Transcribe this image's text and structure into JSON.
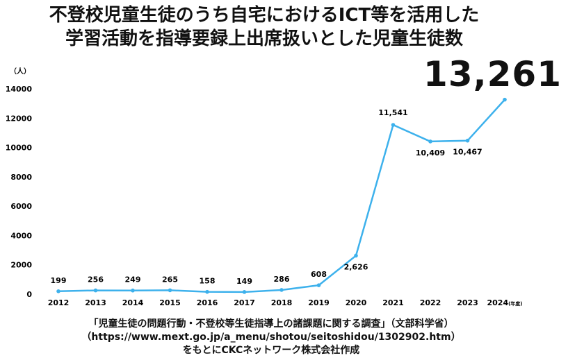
{
  "title_line1": "不登校児童生徒のうち自宅におけるICT等を活用した",
  "title_line2": "学習活動を指導要録上出席扱いとした児童生徒数",
  "highlight_value": "13,261",
  "source": {
    "line1": "「児童生徒の問題行動・不登校等生徒指導上の諸課題に関する調査」（文部科学省）",
    "line2": "（https://www.mext.go.jp/a_menu/shotou/seitoshidou/1302902.htm）",
    "line3": "をもとにCKCネットワーク株式会社作成"
  },
  "chart_data": {
    "type": "line",
    "ylabel": "（人）",
    "xlabel_suffix": "(年度)",
    "ylim": [
      0,
      14000
    ],
    "yticks": [
      0,
      2000,
      4000,
      6000,
      8000,
      10000,
      12000,
      14000
    ],
    "grid": false,
    "color": "#3db1ec",
    "categories": [
      "2012",
      "2013",
      "2014",
      "2015",
      "2016",
      "2017",
      "2018",
      "2019",
      "2020",
      "2021",
      "2022",
      "2023",
      "2024"
    ],
    "values": [
      199,
      256,
      249,
      265,
      158,
      149,
      286,
      608,
      2626,
      11541,
      10409,
      10467,
      13261
    ],
    "data_labels": [
      "199",
      "256",
      "249",
      "265",
      "158",
      "149",
      "286",
      "608",
      "2,626",
      "11,541",
      "10,409",
      "10,467",
      ""
    ]
  }
}
